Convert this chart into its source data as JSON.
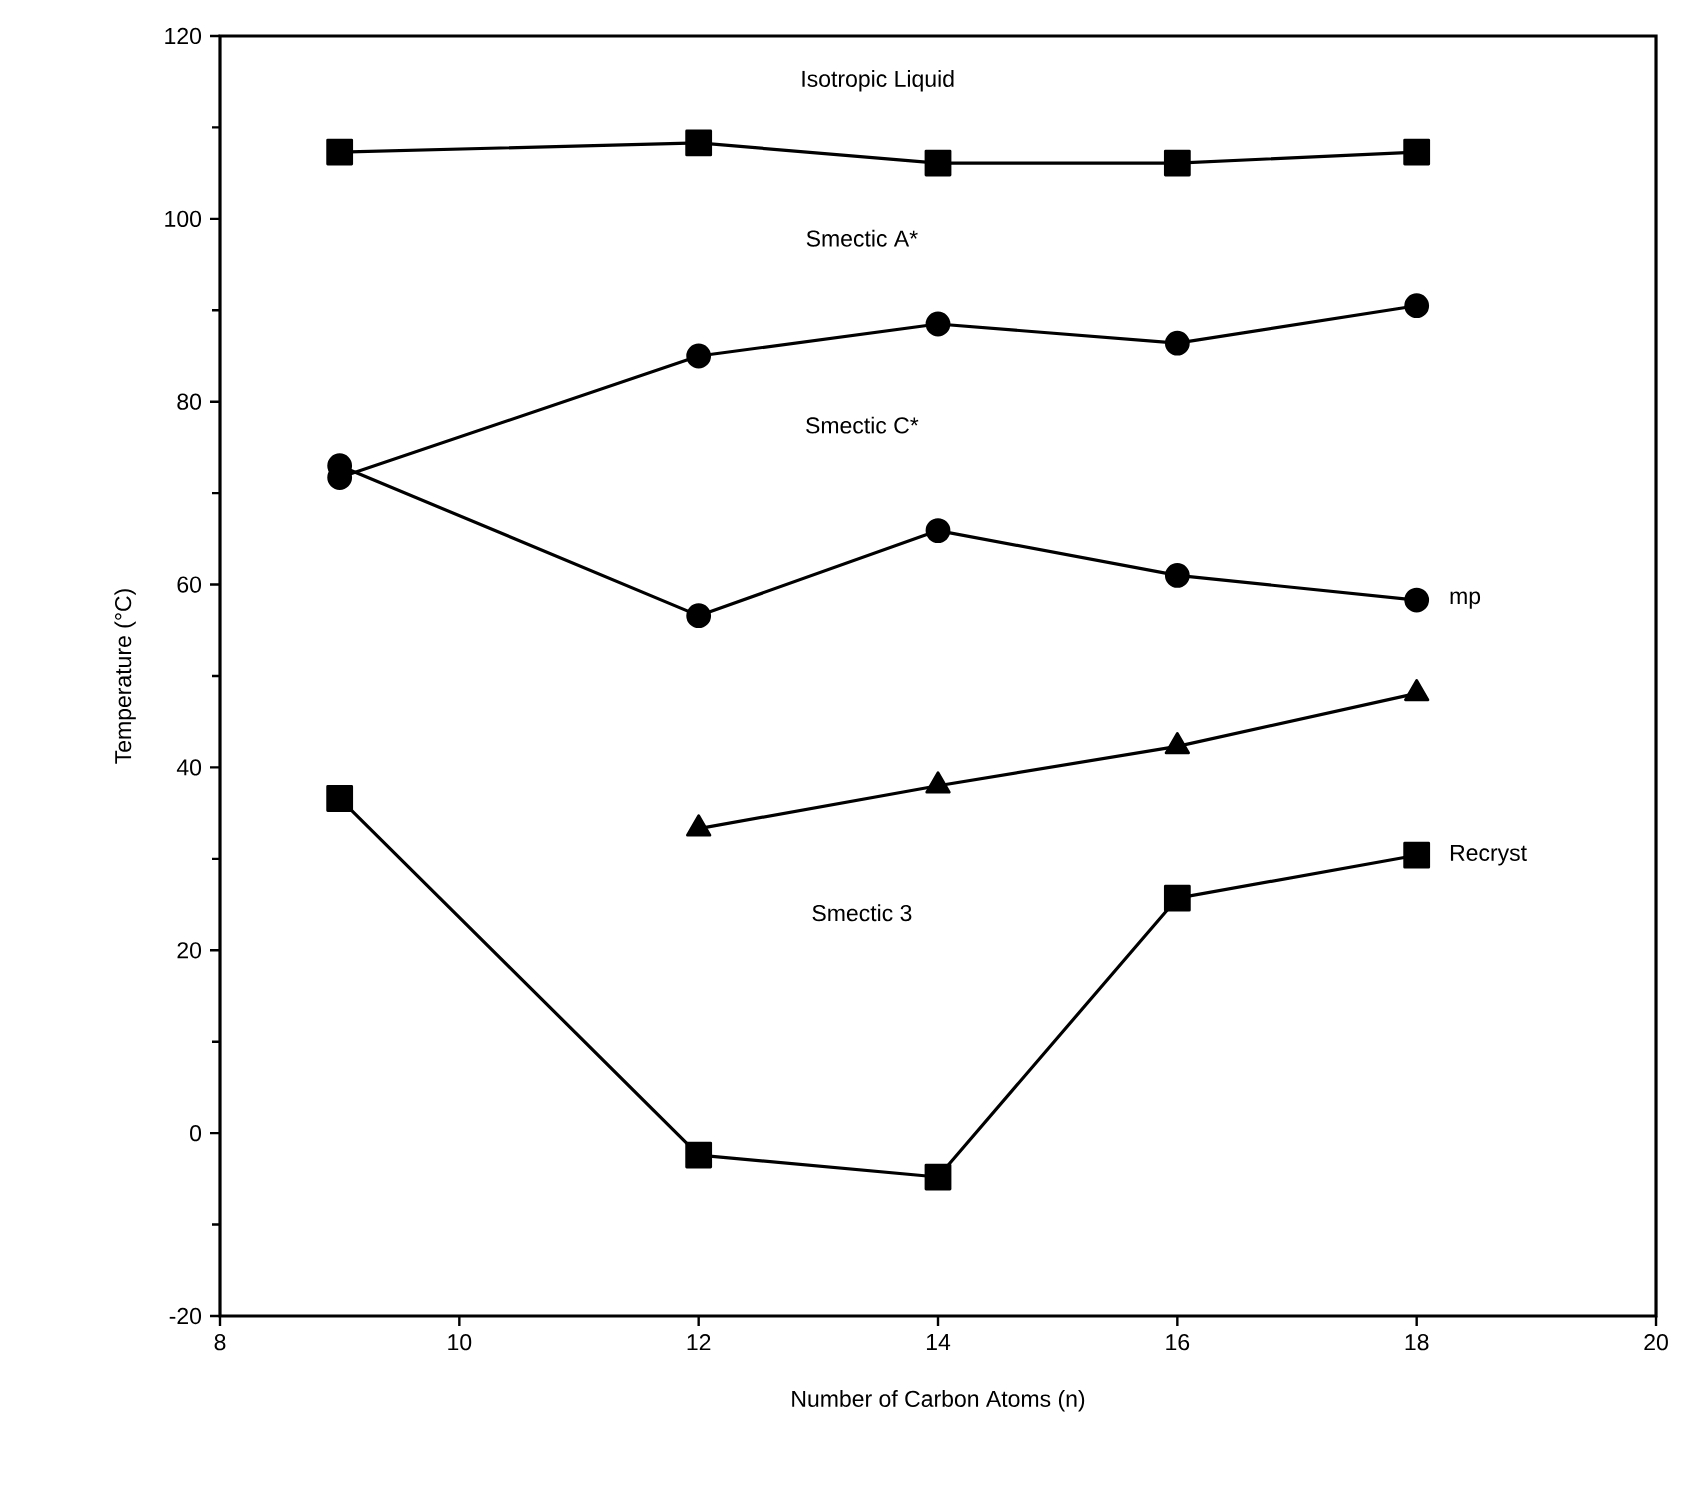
{
  "chart_data": {
    "type": "line",
    "xlabel": "Number of Carbon Atoms (n)",
    "ylabel": "Temperature (°C)",
    "xlim": [
      8,
      20
    ],
    "xticks": [
      8,
      10,
      12,
      14,
      16,
      18,
      20
    ],
    "ylim": [
      -20,
      120
    ],
    "yticks": [
      -20,
      0,
      20,
      40,
      60,
      80,
      100,
      120
    ],
    "line_style": "solid",
    "series": [
      {
        "color": "#000000",
        "marker": "square",
        "x": [
          9,
          12,
          14,
          16,
          18
        ],
        "values": [
          107.3,
          108.3,
          106.1,
          106.1,
          107.3
        ]
      },
      {
        "color": "#000000",
        "marker": "circle",
        "x": [
          9,
          12,
          14,
          16,
          18
        ],
        "values": [
          71.7,
          85.0,
          88.5,
          86.4,
          90.5
        ]
      },
      {
        "name": "mp",
        "color": "#000000",
        "marker": "circle",
        "x": [
          9,
          12,
          14,
          16,
          18
        ],
        "values": [
          73.0,
          56.6,
          65.9,
          61.0,
          58.3
        ]
      },
      {
        "color": "#000000",
        "marker": "triangle",
        "x": [
          12,
          14,
          16,
          18
        ],
        "values": [
          33.3,
          38.0,
          42.3,
          48.1
        ]
      },
      {
        "name": "Recryst",
        "color": "#000000",
        "marker": "square",
        "x": [
          9,
          12,
          14,
          16,
          18
        ],
        "values": [
          36.6,
          -2.4,
          -4.8,
          25.7,
          30.4
        ]
      }
    ],
    "annotations": [
      "Isotropic Liquid",
      "Smectic A*",
      "Smectic C*",
      "Smectic 3"
    ]
  }
}
